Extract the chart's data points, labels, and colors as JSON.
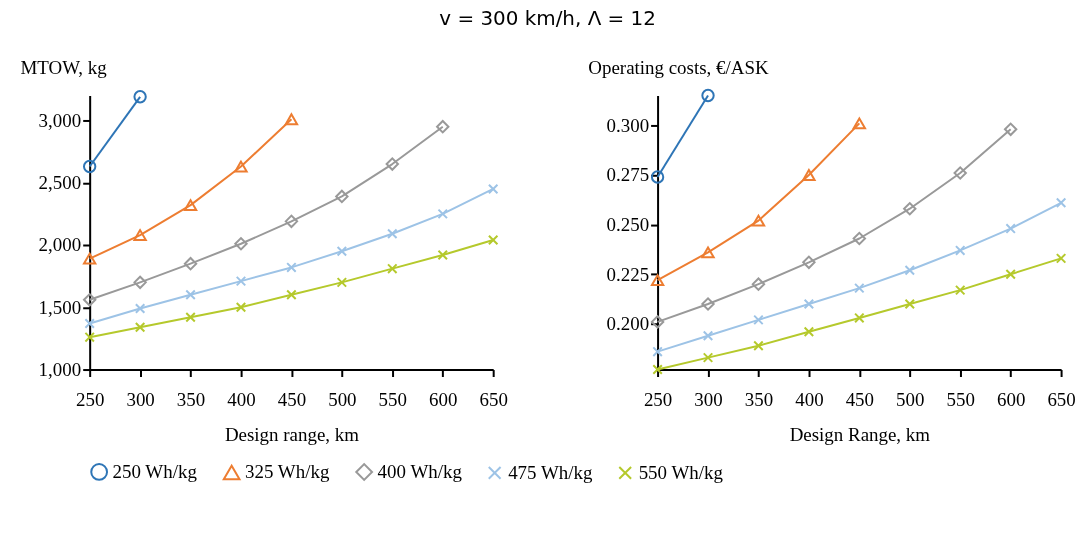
{
  "chart_data": [
    {
      "type": "line",
      "title": "v = 300 km/h, Λ = 12",
      "ylabel": "MTOW, kg",
      "xlabel": "Design range, km",
      "x": [
        250,
        300,
        350,
        400,
        450,
        500,
        550,
        600,
        650
      ],
      "xlim": [
        250,
        650
      ],
      "xticks": [
        250,
        300,
        350,
        400,
        450,
        500,
        550,
        600,
        650
      ],
      "ylim": [
        1000,
        3200
      ],
      "yticks": [
        {
          "value": 1000,
          "label": "1,000"
        },
        {
          "value": 1500,
          "label": "1,500"
        },
        {
          "value": 2000,
          "label": "2,000"
        },
        {
          "value": 2500,
          "label": "2,500"
        },
        {
          "value": 3000,
          "label": "3,000"
        }
      ],
      "legend": "bottom",
      "grid": false,
      "series": [
        {
          "name": "250 Wh/kg",
          "color": "#2e75b6",
          "marker": "circle",
          "values": [
            2630,
            3190,
            null,
            null,
            null,
            null,
            null,
            null,
            null
          ]
        },
        {
          "name": "325 Wh/kg",
          "color": "#ed7d31",
          "marker": "triangle",
          "values": [
            1890,
            2080,
            2320,
            2630,
            3010,
            null,
            null,
            null,
            null
          ]
        },
        {
          "name": "400 Wh/kg",
          "color": "#999999",
          "marker": "diamond",
          "values": [
            1560,
            1700,
            1850,
            2010,
            2190,
            2390,
            2650,
            2950,
            null
          ]
        },
        {
          "name": "475 Wh/kg",
          "color": "#9dc3e6",
          "marker": "cross",
          "values": [
            1370,
            1490,
            1600,
            1710,
            1820,
            1950,
            2090,
            2250,
            2450
          ]
        },
        {
          "name": "550 Wh/kg",
          "color": "#b5c92c",
          "marker": "cross",
          "values": [
            1260,
            1340,
            1420,
            1500,
            1600,
            1700,
            1810,
            1920,
            2040
          ]
        }
      ]
    },
    {
      "type": "line",
      "ylabel": "Operating costs, €/ASK",
      "xlabel": "Design Range, km",
      "x": [
        250,
        300,
        350,
        400,
        450,
        500,
        550,
        600,
        650
      ],
      "xlim": [
        250,
        650
      ],
      "xticks": [
        250,
        300,
        350,
        400,
        450,
        500,
        550,
        600,
        650
      ],
      "ylim": [
        0.177,
        0.315
      ],
      "yticks": [
        {
          "value": 0.2,
          "label": "0.200"
        },
        0.225,
        {
          "value": 0.25,
          "label": "0.250"
        },
        0.275,
        {
          "value": 0.3,
          "label": "0.300"
        }
      ],
      "legend": "bottom",
      "grid": false,
      "series": [
        {
          "name": "250 Wh/kg",
          "color": "#2e75b6",
          "marker": "circle",
          "values": [
            0.274,
            0.315,
            null,
            null,
            null,
            null,
            null,
            null,
            null
          ]
        },
        {
          "name": "325 Wh/kg",
          "color": "#ed7d31",
          "marker": "triangle",
          "values": [
            0.222,
            0.236,
            0.252,
            0.275,
            0.301,
            null,
            null,
            null,
            null
          ]
        },
        {
          "name": "400 Wh/kg",
          "color": "#999999",
          "marker": "diamond",
          "values": [
            0.201,
            0.21,
            0.22,
            0.231,
            0.243,
            0.258,
            0.276,
            0.298,
            null
          ]
        },
        {
          "name": "475 Wh/kg",
          "color": "#9dc3e6",
          "marker": "cross",
          "values": [
            0.186,
            0.194,
            0.202,
            0.21,
            0.218,
            0.227,
            0.237,
            0.248,
            0.261
          ]
        },
        {
          "name": "550 Wh/kg",
          "color": "#b5c92c",
          "marker": "cross",
          "values": [
            0.177,
            0.183,
            0.189,
            0.196,
            0.203,
            0.21,
            0.217,
            0.225,
            0.233
          ]
        }
      ]
    }
  ]
}
